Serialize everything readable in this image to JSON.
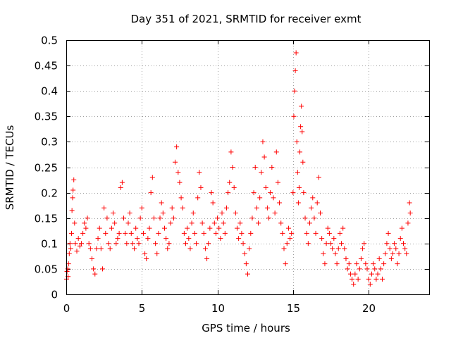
{
  "chart_data": {
    "type": "scatter",
    "title": "Day 351 of 2021, SRMTID for receiver exmt",
    "xlabel": "GPS time / hours",
    "ylabel": "SRMTID / TECUs",
    "xlim": [
      0,
      24
    ],
    "ylim": [
      0,
      0.5
    ],
    "xticks": [
      "0",
      "5",
      "10",
      "15",
      "20"
    ],
    "yticks": [
      "0",
      "0.05",
      "0.1",
      "0.15",
      "0.2",
      "0.25",
      "0.3",
      "0.35",
      "0.4",
      "0.45",
      "0.5"
    ],
    "grid": true,
    "marker": "+",
    "color": "#ff0000",
    "series": [
      {
        "name": "SRMTID",
        "points": [
          [
            0.02,
            0.03
          ],
          [
            0.05,
            0.045
          ],
          [
            0.1,
            0.05
          ],
          [
            0.12,
            0.035
          ],
          [
            0.15,
            0.06
          ],
          [
            0.2,
            0.08
          ],
          [
            0.25,
            0.1
          ],
          [
            0.3,
            0.09
          ],
          [
            0.35,
            0.12
          ],
          [
            0.38,
            0.165
          ],
          [
            0.42,
            0.19
          ],
          [
            0.45,
            0.205
          ],
          [
            0.5,
            0.225
          ],
          [
            0.55,
            0.14
          ],
          [
            0.6,
            0.1
          ],
          [
            0.7,
            0.085
          ],
          [
            0.8,
            0.11
          ],
          [
            0.9,
            0.095
          ],
          [
            1.0,
            0.1
          ],
          [
            1.1,
            0.12
          ],
          [
            1.2,
            0.14
          ],
          [
            1.3,
            0.13
          ],
          [
            1.4,
            0.15
          ],
          [
            1.5,
            0.1
          ],
          [
            1.6,
            0.09
          ],
          [
            1.7,
            0.07
          ],
          [
            1.8,
            0.05
          ],
          [
            1.9,
            0.04
          ],
          [
            2.0,
            0.09
          ],
          [
            2.1,
            0.11
          ],
          [
            2.2,
            0.13
          ],
          [
            2.3,
            0.09
          ],
          [
            2.4,
            0.05
          ],
          [
            2.5,
            0.17
          ],
          [
            2.6,
            0.12
          ],
          [
            2.7,
            0.15
          ],
          [
            2.8,
            0.1
          ],
          [
            2.9,
            0.09
          ],
          [
            3.0,
            0.13
          ],
          [
            3.1,
            0.16
          ],
          [
            3.2,
            0.14
          ],
          [
            3.3,
            0.1
          ],
          [
            3.4,
            0.11
          ],
          [
            3.5,
            0.12
          ],
          [
            3.6,
            0.21
          ],
          [
            3.7,
            0.22
          ],
          [
            3.8,
            0.15
          ],
          [
            3.9,
            0.12
          ],
          [
            4.0,
            0.1
          ],
          [
            4.1,
            0.14
          ],
          [
            4.2,
            0.16
          ],
          [
            4.3,
            0.12
          ],
          [
            4.4,
            0.1
          ],
          [
            4.5,
            0.09
          ],
          [
            4.6,
            0.13
          ],
          [
            4.7,
            0.11
          ],
          [
            4.8,
            0.1
          ],
          [
            4.9,
            0.15
          ],
          [
            5.0,
            0.17
          ],
          [
            5.1,
            0.12
          ],
          [
            5.2,
            0.08
          ],
          [
            5.3,
            0.07
          ],
          [
            5.4,
            0.11
          ],
          [
            5.5,
            0.13
          ],
          [
            5.6,
            0.2
          ],
          [
            5.7,
            0.23
          ],
          [
            5.8,
            0.15
          ],
          [
            5.9,
            0.1
          ],
          [
            6.0,
            0.08
          ],
          [
            6.1,
            0.12
          ],
          [
            6.2,
            0.15
          ],
          [
            6.3,
            0.18
          ],
          [
            6.4,
            0.16
          ],
          [
            6.5,
            0.13
          ],
          [
            6.6,
            0.11
          ],
          [
            6.7,
            0.09
          ],
          [
            6.8,
            0.1
          ],
          [
            6.9,
            0.14
          ],
          [
            7.0,
            0.17
          ],
          [
            7.1,
            0.15
          ],
          [
            7.2,
            0.26
          ],
          [
            7.3,
            0.29
          ],
          [
            7.4,
            0.24
          ],
          [
            7.5,
            0.22
          ],
          [
            7.6,
            0.19
          ],
          [
            7.7,
            0.17
          ],
          [
            7.8,
            0.12
          ],
          [
            7.9,
            0.1
          ],
          [
            8.0,
            0.13
          ],
          [
            8.1,
            0.11
          ],
          [
            8.2,
            0.09
          ],
          [
            8.3,
            0.14
          ],
          [
            8.4,
            0.16
          ],
          [
            8.5,
            0.12
          ],
          [
            8.6,
            0.1
          ],
          [
            8.7,
            0.19
          ],
          [
            8.8,
            0.24
          ],
          [
            8.9,
            0.21
          ],
          [
            9.0,
            0.14
          ],
          [
            9.1,
            0.12
          ],
          [
            9.2,
            0.09
          ],
          [
            9.3,
            0.07
          ],
          [
            9.4,
            0.1
          ],
          [
            9.5,
            0.13
          ],
          [
            9.6,
            0.2
          ],
          [
            9.7,
            0.18
          ],
          [
            9.8,
            0.14
          ],
          [
            9.9,
            0.12
          ],
          [
            10.0,
            0.15
          ],
          [
            10.1,
            0.13
          ],
          [
            10.2,
            0.11
          ],
          [
            10.3,
            0.16
          ],
          [
            10.4,
            0.14
          ],
          [
            10.5,
            0.12
          ],
          [
            10.6,
            0.17
          ],
          [
            10.7,
            0.2
          ],
          [
            10.8,
            0.22
          ],
          [
            10.9,
            0.28
          ],
          [
            11.0,
            0.25
          ],
          [
            11.1,
            0.21
          ],
          [
            11.2,
            0.16
          ],
          [
            11.3,
            0.13
          ],
          [
            11.4,
            0.11
          ],
          [
            11.5,
            0.14
          ],
          [
            11.6,
            0.12
          ],
          [
            11.7,
            0.1
          ],
          [
            11.8,
            0.08
          ],
          [
            11.9,
            0.06
          ],
          [
            12.0,
            0.04
          ],
          [
            12.1,
            0.09
          ],
          [
            12.2,
            0.12
          ],
          [
            12.3,
            0.15
          ],
          [
            12.4,
            0.2
          ],
          [
            12.5,
            0.25
          ],
          [
            12.6,
            0.17
          ],
          [
            12.7,
            0.14
          ],
          [
            12.8,
            0.19
          ],
          [
            12.9,
            0.24
          ],
          [
            13.0,
            0.3
          ],
          [
            13.1,
            0.27
          ],
          [
            13.2,
            0.21
          ],
          [
            13.3,
            0.17
          ],
          [
            13.4,
            0.15
          ],
          [
            13.5,
            0.2
          ],
          [
            13.6,
            0.25
          ],
          [
            13.7,
            0.19
          ],
          [
            13.8,
            0.16
          ],
          [
            13.9,
            0.28
          ],
          [
            14.0,
            0.22
          ],
          [
            14.1,
            0.18
          ],
          [
            14.2,
            0.14
          ],
          [
            14.3,
            0.12
          ],
          [
            14.4,
            0.09
          ],
          [
            14.5,
            0.06
          ],
          [
            14.6,
            0.1
          ],
          [
            14.7,
            0.13
          ],
          [
            14.8,
            0.11
          ],
          [
            14.9,
            0.12
          ],
          [
            15.0,
            0.2
          ],
          [
            15.05,
            0.35
          ],
          [
            15.1,
            0.4
          ],
          [
            15.15,
            0.44
          ],
          [
            15.2,
            0.475
          ],
          [
            15.25,
            0.3
          ],
          [
            15.3,
            0.24
          ],
          [
            15.35,
            0.18
          ],
          [
            15.4,
            0.21
          ],
          [
            15.45,
            0.28
          ],
          [
            15.5,
            0.33
          ],
          [
            15.55,
            0.37
          ],
          [
            15.6,
            0.32
          ],
          [
            15.65,
            0.26
          ],
          [
            15.7,
            0.2
          ],
          [
            15.8,
            0.15
          ],
          [
            15.9,
            0.12
          ],
          [
            16.0,
            0.1
          ],
          [
            16.1,
            0.14
          ],
          [
            16.2,
            0.17
          ],
          [
            16.3,
            0.19
          ],
          [
            16.4,
            0.15
          ],
          [
            16.5,
            0.12
          ],
          [
            16.6,
            0.18
          ],
          [
            16.7,
            0.23
          ],
          [
            16.8,
            0.16
          ],
          [
            16.9,
            0.11
          ],
          [
            17.0,
            0.08
          ],
          [
            17.1,
            0.06
          ],
          [
            17.2,
            0.1
          ],
          [
            17.3,
            0.13
          ],
          [
            17.4,
            0.12
          ],
          [
            17.5,
            0.1
          ],
          [
            17.6,
            0.09
          ],
          [
            17.7,
            0.11
          ],
          [
            17.8,
            0.08
          ],
          [
            17.9,
            0.06
          ],
          [
            18.0,
            0.09
          ],
          [
            18.1,
            0.12
          ],
          [
            18.2,
            0.1
          ],
          [
            18.3,
            0.13
          ],
          [
            18.4,
            0.09
          ],
          [
            18.5,
            0.07
          ],
          [
            18.6,
            0.05
          ],
          [
            18.7,
            0.06
          ],
          [
            18.8,
            0.04
          ],
          [
            18.9,
            0.03
          ],
          [
            19.0,
            0.02
          ],
          [
            19.1,
            0.04
          ],
          [
            19.2,
            0.06
          ],
          [
            19.3,
            0.03
          ],
          [
            19.4,
            0.05
          ],
          [
            19.5,
            0.07
          ],
          [
            19.6,
            0.09
          ],
          [
            19.7,
            0.1
          ],
          [
            19.8,
            0.06
          ],
          [
            19.9,
            0.05
          ],
          [
            20.0,
            0.03
          ],
          [
            20.1,
            0.02
          ],
          [
            20.2,
            0.04
          ],
          [
            20.3,
            0.06
          ],
          [
            20.4,
            0.05
          ],
          [
            20.5,
            0.03
          ],
          [
            20.6,
            0.04
          ],
          [
            20.7,
            0.07
          ],
          [
            20.8,
            0.05
          ],
          [
            20.9,
            0.03
          ],
          [
            21.0,
            0.06
          ],
          [
            21.1,
            0.08
          ],
          [
            21.2,
            0.1
          ],
          [
            21.3,
            0.12
          ],
          [
            21.4,
            0.09
          ],
          [
            21.5,
            0.07
          ],
          [
            21.6,
            0.08
          ],
          [
            21.7,
            0.1
          ],
          [
            21.8,
            0.09
          ],
          [
            21.9,
            0.06
          ],
          [
            22.0,
            0.08
          ],
          [
            22.1,
            0.11
          ],
          [
            22.2,
            0.13
          ],
          [
            22.3,
            0.1
          ],
          [
            22.4,
            0.09
          ],
          [
            22.5,
            0.08
          ],
          [
            22.6,
            0.14
          ],
          [
            22.7,
            0.18
          ],
          [
            22.75,
            0.16
          ]
        ]
      }
    ]
  }
}
